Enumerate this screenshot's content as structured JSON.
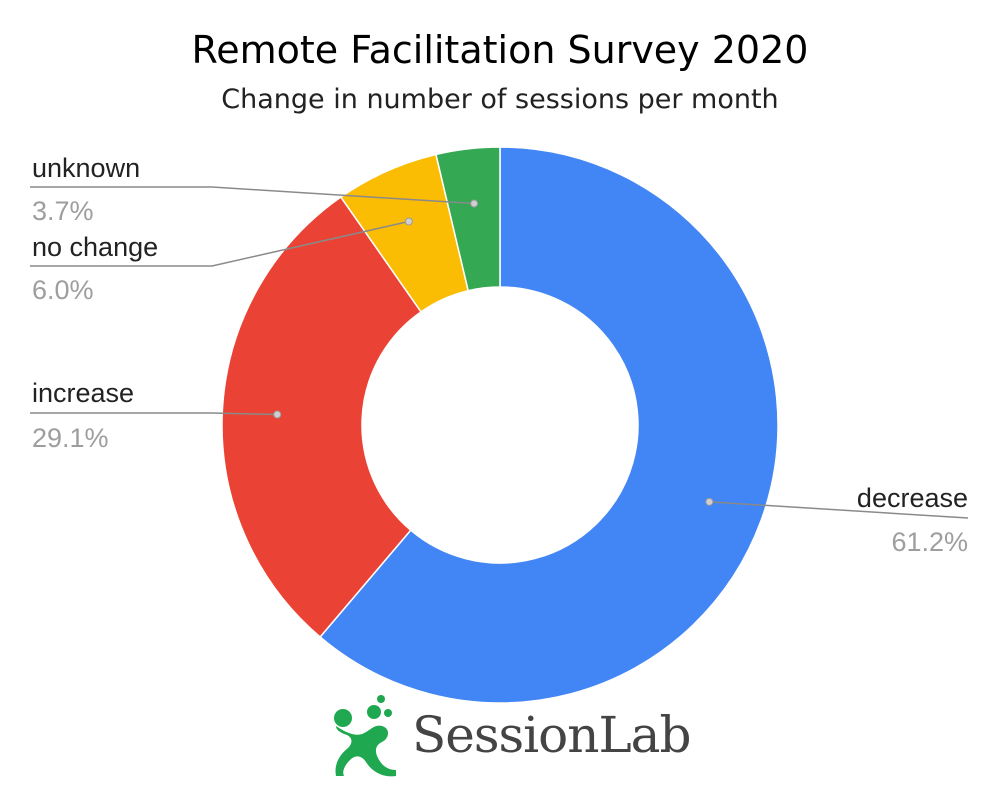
{
  "chart_data": {
    "type": "pie",
    "donut": true,
    "title": "Remote Facilitation Survey 2020",
    "subtitle": "Change in number of sessions per month",
    "slices": [
      {
        "label": "decrease",
        "value": 61.2,
        "value_label": "61.2%",
        "color": "#4285f4"
      },
      {
        "label": "increase",
        "value": 29.1,
        "value_label": "29.1%",
        "color": "#ea4335"
      },
      {
        "label": "no change",
        "value": 6.0,
        "value_label": "6.0%",
        "color": "#fbbc04"
      },
      {
        "label": "unknown",
        "value": 3.7,
        "value_label": "3.7%",
        "color": "#34a853"
      }
    ],
    "legend": "none"
  },
  "brand": {
    "name": "SessionLab",
    "icon": "sessionlab-logo-icon",
    "color": "#1fa84f"
  }
}
